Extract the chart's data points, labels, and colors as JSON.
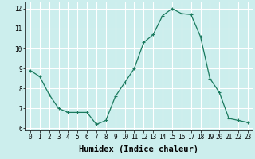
{
  "x": [
    0,
    1,
    2,
    3,
    4,
    5,
    6,
    7,
    8,
    9,
    10,
    11,
    12,
    13,
    14,
    15,
    16,
    17,
    18,
    19,
    20,
    21,
    22,
    23
  ],
  "y": [
    8.9,
    8.6,
    7.7,
    7.0,
    6.8,
    6.8,
    6.8,
    6.2,
    6.4,
    7.6,
    8.3,
    9.0,
    10.3,
    10.7,
    11.65,
    12.0,
    11.75,
    11.7,
    10.6,
    8.5,
    7.8,
    6.5,
    6.4,
    6.3
  ],
  "line_color": "#1a7a5e",
  "marker": "+",
  "marker_size": 3,
  "xlabel": "Humidex (Indice chaleur)",
  "ylim": [
    5.9,
    12.35
  ],
  "xlim": [
    -0.5,
    23.5
  ],
  "yticks": [
    6,
    7,
    8,
    9,
    10,
    11,
    12
  ],
  "xticks": [
    0,
    1,
    2,
    3,
    4,
    5,
    6,
    7,
    8,
    9,
    10,
    11,
    12,
    13,
    14,
    15,
    16,
    17,
    18,
    19,
    20,
    21,
    22,
    23
  ],
  "bg_color": "#cceeed",
  "grid_color": "#ffffff",
  "tick_label_fontsize": 5.5,
  "xlabel_fontsize": 7.5
}
